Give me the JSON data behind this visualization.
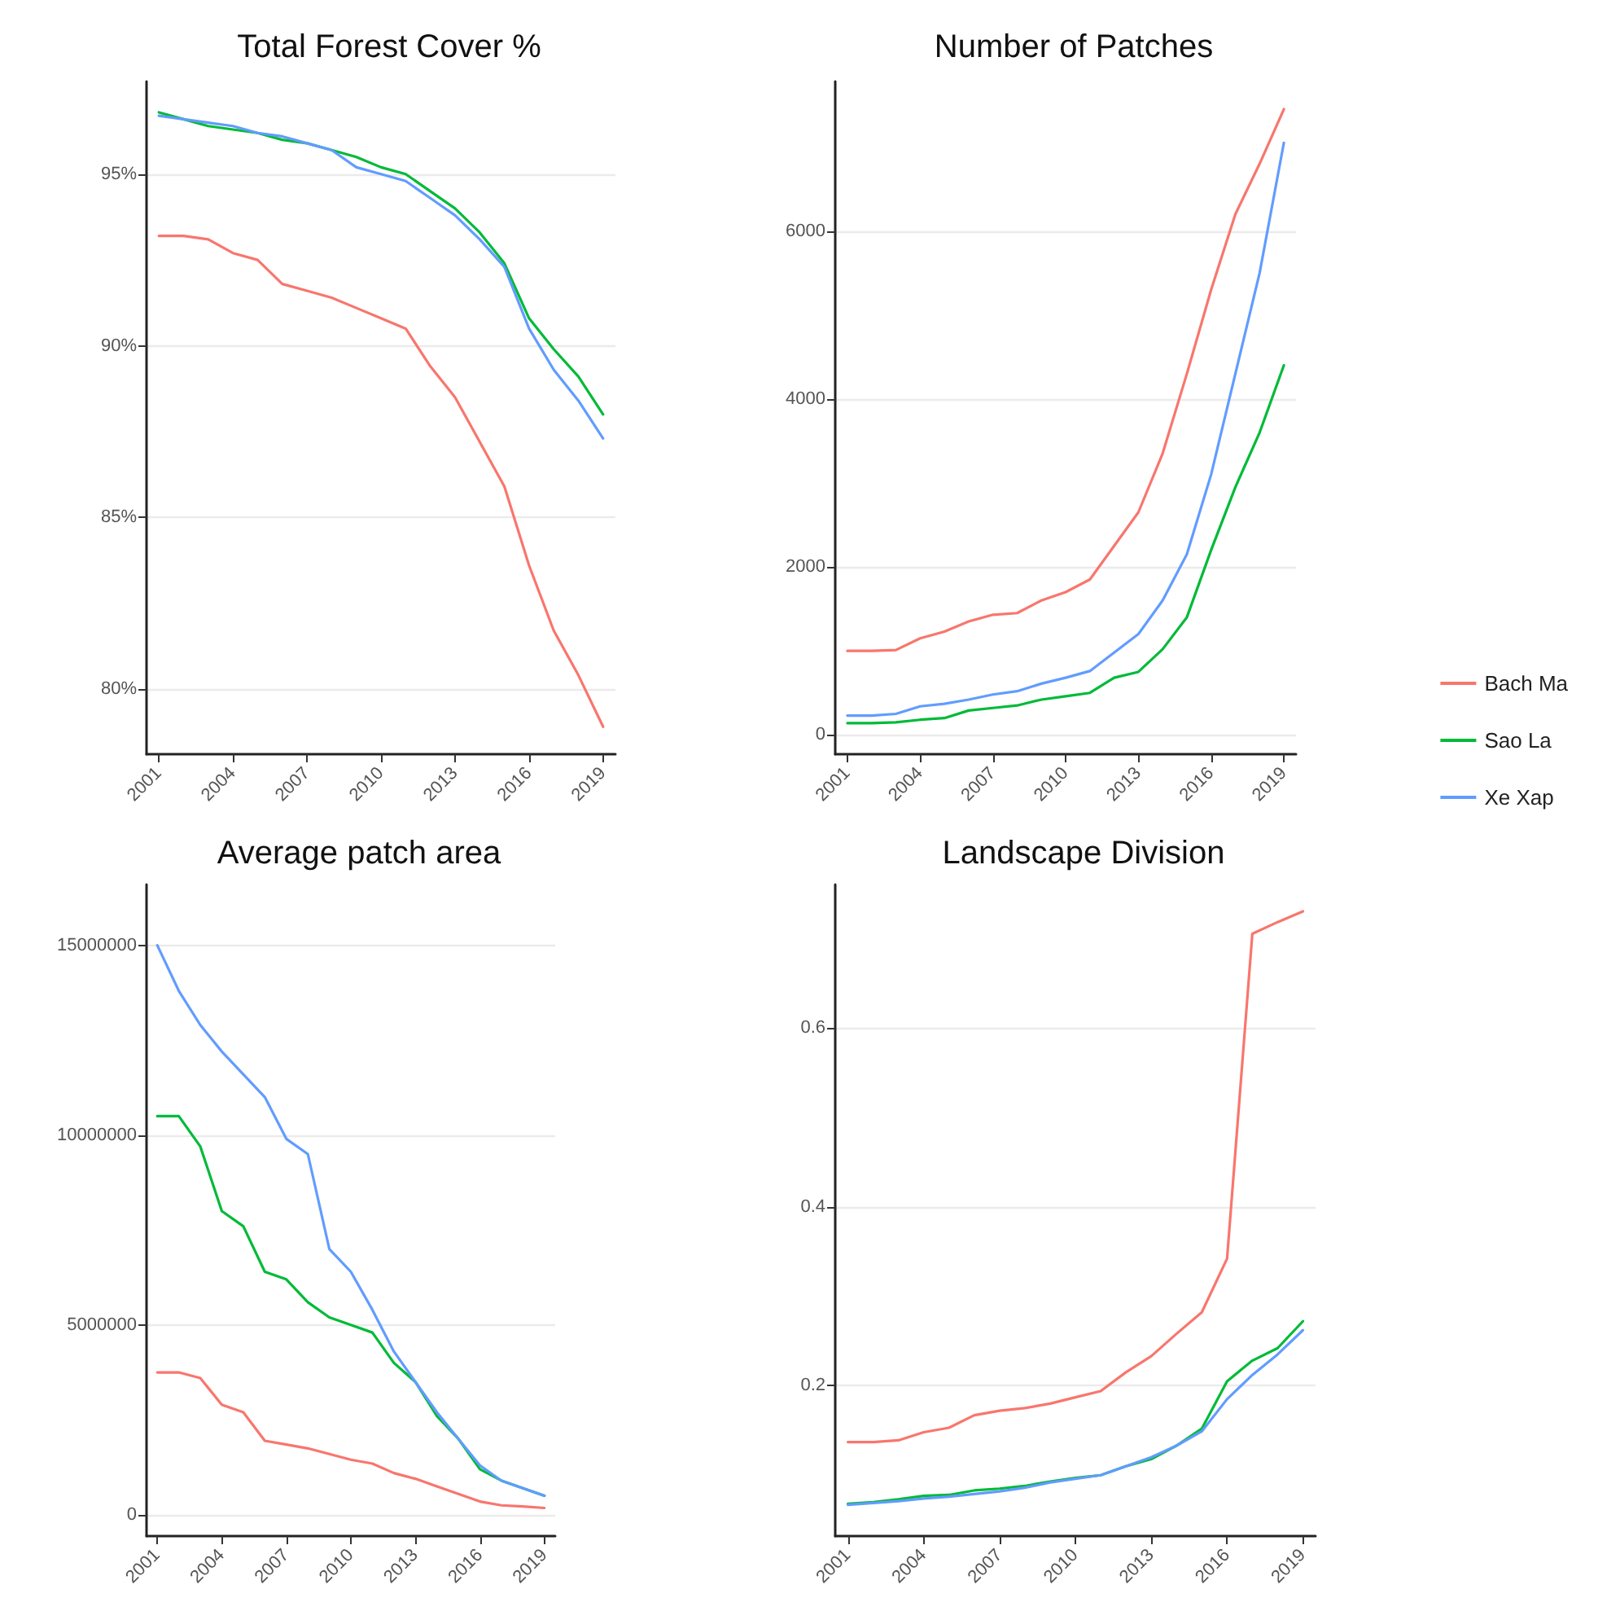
{
  "chart_data": [
    {
      "type": "line",
      "title": "Total Forest Cover %",
      "x": [
        2001,
        2002,
        2003,
        2004,
        2005,
        2006,
        2007,
        2008,
        2009,
        2010,
        2011,
        2012,
        2013,
        2014,
        2015,
        2016,
        2017,
        2018,
        2019
      ],
      "xlim": [
        2000.5,
        2019.5
      ],
      "xticks": [
        2001,
        2004,
        2007,
        2010,
        2013,
        2016,
        2019
      ],
      "ylim": [
        78.1,
        97.7
      ],
      "yticks": [
        {
          "value": 80,
          "label": "80%"
        },
        {
          "value": 85,
          "label": "85%"
        },
        {
          "value": 90,
          "label": "90%"
        },
        {
          "value": 95,
          "label": "95%"
        }
      ],
      "grid": "y",
      "series": [
        {
          "color": "#f8766d",
          "values": [
            93.2,
            93.2,
            93.1,
            92.7,
            92.5,
            91.8,
            91.6,
            91.4,
            91.1,
            90.8,
            90.5,
            89.4,
            88.5,
            87.2,
            85.9,
            83.6,
            81.7,
            80.4,
            78.9
          ]
        },
        {
          "color": "#00ba38",
          "values": [
            96.8,
            96.6,
            96.4,
            96.3,
            96.2,
            96.0,
            95.9,
            95.7,
            95.5,
            95.2,
            95.0,
            94.5,
            94.0,
            93.3,
            92.4,
            90.8,
            89.9,
            89.1,
            88.0
          ]
        },
        {
          "color": "#619cff",
          "values": [
            96.7,
            96.6,
            96.5,
            96.4,
            96.2,
            96.1,
            95.9,
            95.7,
            95.2,
            95.0,
            94.8,
            94.3,
            93.8,
            93.1,
            92.3,
            90.5,
            89.3,
            88.4,
            87.3
          ]
        }
      ]
    },
    {
      "type": "line",
      "title": "Number of Patches",
      "x": [
        2001,
        2002,
        2003,
        2004,
        2005,
        2006,
        2007,
        2008,
        2009,
        2010,
        2011,
        2012,
        2013,
        2014,
        2015,
        2016,
        2017,
        2018,
        2019
      ],
      "xlim": [
        2000.5,
        2019.5
      ],
      "xticks": [
        2001,
        2004,
        2007,
        2010,
        2013,
        2016,
        2019
      ],
      "ylim": [
        -230,
        7780
      ],
      "yticks": [
        0,
        2000,
        4000,
        6000
      ],
      "grid": "y",
      "legend": "right",
      "series": [
        {
          "name": "Bach Ma",
          "color": "#f8766d",
          "values": [
            1000,
            1000,
            1010,
            1150,
            1230,
            1350,
            1430,
            1450,
            1600,
            1700,
            1850,
            2250,
            2650,
            3350,
            4300,
            5300,
            6200,
            6800,
            7450
          ]
        },
        {
          "name": "Sao La",
          "color": "#00ba38",
          "values": [
            140,
            140,
            150,
            180,
            200,
            290,
            320,
            350,
            420,
            460,
            500,
            680,
            750,
            1020,
            1400,
            2200,
            2950,
            3600,
            4400
          ]
        },
        {
          "name": "Xe Xap",
          "color": "#619cff",
          "values": [
            230,
            230,
            250,
            340,
            370,
            420,
            480,
            520,
            610,
            680,
            760,
            980,
            1200,
            1600,
            2150,
            3100,
            4300,
            5500,
            7050
          ]
        }
      ]
    },
    {
      "type": "line",
      "title": "Average patch area",
      "x": [
        2001,
        2002,
        2003,
        2004,
        2005,
        2006,
        2007,
        2008,
        2009,
        2010,
        2011,
        2012,
        2013,
        2014,
        2015,
        2016,
        2017,
        2018,
        2019
      ],
      "xlim": [
        2000.5,
        2019.5
      ],
      "xticks": [
        2001,
        2004,
        2007,
        2010,
        2013,
        2016,
        2019
      ],
      "ylim": [
        -560000,
        16600000
      ],
      "yticks": [
        0,
        5000000,
        10000000,
        15000000
      ],
      "grid": "y",
      "series": [
        {
          "color": "#f8766d",
          "values": [
            3750000,
            3750000,
            3600000,
            2900000,
            2700000,
            1950000,
            1850000,
            1750000,
            1600000,
            1450000,
            1350000,
            1100000,
            950000,
            750000,
            550000,
            350000,
            250000,
            220000,
            180000
          ]
        },
        {
          "color": "#00ba38",
          "values": [
            10500000,
            10500000,
            9700000,
            8000000,
            7600000,
            6400000,
            6200000,
            5600000,
            5200000,
            5000000,
            4800000,
            4000000,
            3500000,
            2600000,
            2000000,
            1200000,
            900000,
            700000,
            500000
          ]
        },
        {
          "color": "#619cff",
          "values": [
            15000000,
            13800000,
            12900000,
            12200000,
            11600000,
            11000000,
            9900000,
            9500000,
            7000000,
            6400000,
            5400000,
            4300000,
            3500000,
            2700000,
            2000000,
            1300000,
            900000,
            700000,
            500000
          ]
        }
      ]
    },
    {
      "type": "line",
      "title": "Landscape Division",
      "x": [
        2001,
        2002,
        2003,
        2004,
        2005,
        2006,
        2007,
        2008,
        2009,
        2010,
        2011,
        2012,
        2013,
        2014,
        2015,
        2016,
        2017,
        2018,
        2019
      ],
      "xlim": [
        2000.5,
        2019.5
      ],
      "xticks": [
        2001,
        2004,
        2007,
        2010,
        2013,
        2016,
        2019
      ],
      "ylim": [
        0.032,
        0.76
      ],
      "yticks": [
        0.2,
        0.4,
        0.6
      ],
      "grid": "y",
      "series": [
        {
          "color": "#f8766d",
          "values": [
            0.137,
            0.137,
            0.139,
            0.148,
            0.153,
            0.167,
            0.172,
            0.175,
            0.18,
            0.187,
            0.194,
            0.215,
            0.233,
            0.258,
            0.282,
            0.342,
            0.705,
            0.718,
            0.73
          ]
        },
        {
          "color": "#00ba38",
          "values": [
            0.068,
            0.07,
            0.073,
            0.077,
            0.078,
            0.083,
            0.085,
            0.088,
            0.093,
            0.097,
            0.1,
            0.11,
            0.118,
            0.133,
            0.152,
            0.205,
            0.228,
            0.242,
            0.272
          ]
        },
        {
          "color": "#619cff",
          "values": [
            0.067,
            0.069,
            0.071,
            0.074,
            0.076,
            0.079,
            0.082,
            0.086,
            0.092,
            0.096,
            0.1,
            0.11,
            0.12,
            0.133,
            0.149,
            0.185,
            0.212,
            0.235,
            0.262
          ]
        }
      ]
    }
  ]
}
